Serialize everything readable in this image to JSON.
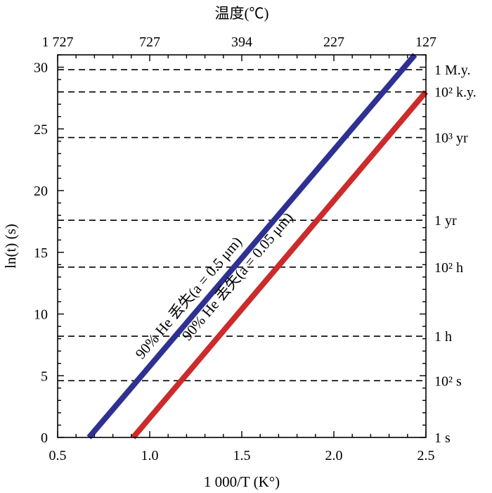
{
  "chart_data": {
    "type": "line",
    "xlabel": "1 000/T (K°)",
    "ylabel": "ln(t) (s)",
    "x2label": "温度(℃)",
    "xlim": [
      0.5,
      2.5
    ],
    "ylim": [
      0,
      31
    ],
    "xticks": [
      0.5,
      1.0,
      1.5,
      2.0,
      2.5
    ],
    "xtick_labels": [
      "0.5",
      "1.0",
      "1.5",
      "2.0",
      "2.5"
    ],
    "yticks": [
      0,
      5,
      10,
      15,
      20,
      25,
      30
    ],
    "ytick_labels": [
      "0",
      "5",
      "10",
      "15",
      "20",
      "25",
      "30"
    ],
    "top_ticks": [
      {
        "x": 0.5,
        "label": "1 727"
      },
      {
        "x": 1.0,
        "label": "727"
      },
      {
        "x": 1.5,
        "label": "394"
      },
      {
        "x": 2.0,
        "label": "227"
      },
      {
        "x": 2.5,
        "label": "127"
      }
    ],
    "reference_lines": [
      {
        "y": 0,
        "label": "1 s",
        "dashed": false
      },
      {
        "y": 4.6,
        "label": "10² s",
        "dashed": true
      },
      {
        "y": 8.2,
        "label": "1 h",
        "dashed": true
      },
      {
        "y": 13.8,
        "label": "10² h",
        "dashed": true
      },
      {
        "y": 17.6,
        "label": "1 yr",
        "dashed": true
      },
      {
        "y": 24.3,
        "label": "10³ yr",
        "dashed": true
      },
      {
        "y": 28.0,
        "label": "10² k.y.",
        "dashed": true
      },
      {
        "y": 29.8,
        "label": "1 M.y.",
        "dashed": true
      }
    ],
    "series": [
      {
        "name": "90% He 丢失(a = 0.5 μm)",
        "color": "#2e3192",
        "x": [
          0.67,
          2.44
        ],
        "y": [
          0,
          31.0
        ]
      },
      {
        "name": "90% He 丢失(a = 0.05 μm)",
        "color": "#cc2b2b",
        "x": [
          0.91,
          2.5
        ],
        "y": [
          0,
          28.0
        ]
      }
    ]
  }
}
